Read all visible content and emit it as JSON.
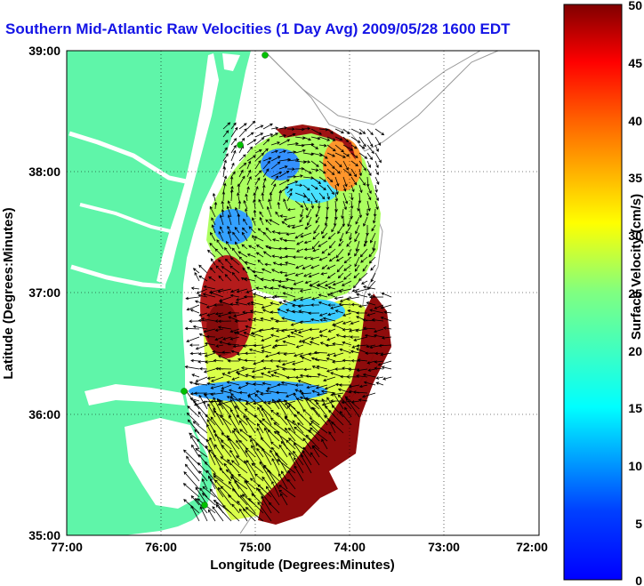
{
  "title": "Southern Mid-Atlantic Raw Velocities (1 Day Avg) 2009/05/28 1600 EDT",
  "map": {
    "xlabel": "Longitude (Degrees:Minutes)",
    "ylabel": "Latitude (Degrees:Minutes)",
    "x_ticks": [
      "77:00",
      "76:00",
      "75:00",
      "74:00",
      "73:00",
      "72:00"
    ],
    "y_ticks": [
      "39:00",
      "38:00",
      "37:00",
      "36:00",
      "35:00"
    ],
    "lon_range": [
      -77,
      -72
    ],
    "lat_range": [
      35,
      39
    ],
    "grid": true,
    "land_color": "#5ff5a9",
    "ocean_color": "#ffffff"
  },
  "colorbar": {
    "label": "Surface Velocity (cm/s)",
    "ticks": [
      "50",
      "45",
      "40",
      "35",
      "30",
      "25",
      "20",
      "15",
      "10",
      "5",
      "0"
    ],
    "range": [
      0,
      50
    ],
    "colormap": "jet"
  }
}
